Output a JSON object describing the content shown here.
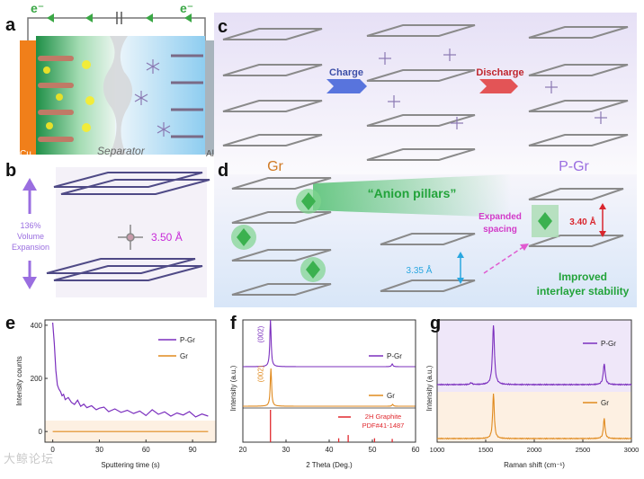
{
  "panels": {
    "a": {
      "label": "a",
      "electron_left": "e⁻",
      "electron_right": "e⁻",
      "separator": "Separator",
      "cu": "Cu",
      "al": "Al"
    },
    "b": {
      "label": "b",
      "expansion_pct": "136%",
      "expansion_l1": "Volume",
      "expansion_l2": "Expansion",
      "spacing": "3.50 Å"
    },
    "c": {
      "label": "c",
      "charge": "Charge",
      "discharge": "Discharge",
      "gr": "Gr",
      "pgr": "P-Gr"
    },
    "d": {
      "label": "d",
      "anion_pillars": "“Anion pillars”",
      "spacing_small": "3.35 Å",
      "expanded_l1": "Expanded",
      "expanded_l2": "spacing",
      "spacing_large": "3.40 Å",
      "improved_l1": "Improved",
      "improved_l2": "interlayer stability"
    },
    "e": {
      "label": "e"
    },
    "f": {
      "label": "f",
      "peak_pgr": "(002)",
      "peak_gr": "(002)",
      "ref_l1": "2H Graphite",
      "ref_l2": "PDF#41-1487"
    },
    "g": {
      "label": "g"
    }
  },
  "colors": {
    "pgr": "#7b2fbe",
    "gr": "#e08a1e",
    "ref": "#e0282e",
    "green": "#22a33a",
    "blue_arrow": "#2aa7e0",
    "red_arrow": "#d9262e",
    "cu": "#f07f1a"
  },
  "watermark": "大鲸论坛",
  "chart_data": [
    {
      "id": "e",
      "type": "line",
      "title": "",
      "xlabel": "Sputtering time (s)",
      "ylabel": "Intensity counts",
      "xlim": [
        -5,
        105
      ],
      "ylim": [
        -40,
        420
      ],
      "xticks": [
        0,
        30,
        60,
        90
      ],
      "yticks": [
        0,
        200,
        400
      ],
      "legend": [
        "P-Gr",
        "Gr"
      ],
      "legend_position": "top-right",
      "series": [
        {
          "name": "P-Gr",
          "color": "#7b2fbe",
          "x": [
            0,
            1,
            2,
            3,
            4,
            5,
            6,
            7,
            8,
            10,
            12,
            14,
            16,
            18,
            20,
            22,
            25,
            28,
            30,
            33,
            36,
            40,
            44,
            48,
            52,
            56,
            60,
            64,
            68,
            72,
            76,
            80,
            84,
            88,
            92,
            96,
            100
          ],
          "y": [
            410,
            330,
            230,
            175,
            160,
            150,
            135,
            140,
            120,
            128,
            110,
            102,
            118,
            95,
            103,
            90,
            97,
            82,
            88,
            92,
            75,
            85,
            72,
            80,
            68,
            77,
            60,
            82,
            65,
            74,
            58,
            70,
            62,
            75,
            55,
            66,
            58
          ]
        },
        {
          "name": "Gr",
          "color": "#e08a1e",
          "x": [
            0,
            100
          ],
          "y": [
            0,
            0
          ]
        }
      ]
    },
    {
      "id": "f",
      "type": "line",
      "title": "",
      "xlabel": "2 Theta (Deg.)",
      "ylabel": "Intensity (a.u.)",
      "xlim": [
        20,
        60
      ],
      "xticks": [
        20,
        30,
        40,
        50,
        60
      ],
      "legend": [
        "P-Gr",
        "Gr",
        "2H Graphite PDF#41-1487"
      ],
      "peak_label": "(002)",
      "peak_position": 26.4,
      "series": [
        {
          "name": "P-Gr",
          "color": "#7b2fbe",
          "peaks": [
            [
              26.4,
              1.0
            ],
            [
              54.6,
              0.06
            ]
          ]
        },
        {
          "name": "Gr",
          "color": "#e08a1e",
          "peaks": [
            [
              26.5,
              1.0
            ],
            [
              54.7,
              0.05
            ]
          ]
        }
      ],
      "reference": {
        "name": "2H Graphite PDF#41-1487",
        "color": "#e0282e",
        "lines": [
          [
            26.4,
            1.0
          ],
          [
            42.2,
            0.12
          ],
          [
            44.4,
            0.22
          ],
          [
            50.5,
            0.12
          ],
          [
            54.6,
            0.1
          ]
        ]
      }
    },
    {
      "id": "g",
      "type": "line",
      "title": "",
      "xlabel": "Raman shift (cm⁻¹)",
      "ylabel": "Intensity (a.u.)",
      "xlim": [
        1000,
        3000
      ],
      "xticks": [
        1000,
        1500,
        2000,
        2500,
        3000
      ],
      "legend": [
        "P-Gr",
        "Gr"
      ],
      "series": [
        {
          "name": "P-Gr",
          "color": "#7b2fbe",
          "peaks": [
            [
              1580,
              1.0
            ],
            [
              1350,
              0.03
            ],
            [
              2720,
              0.35
            ]
          ]
        },
        {
          "name": "Gr",
          "color": "#e08a1e",
          "peaks": [
            [
              1580,
              1.0
            ],
            [
              2720,
              0.45
            ]
          ]
        }
      ]
    }
  ]
}
